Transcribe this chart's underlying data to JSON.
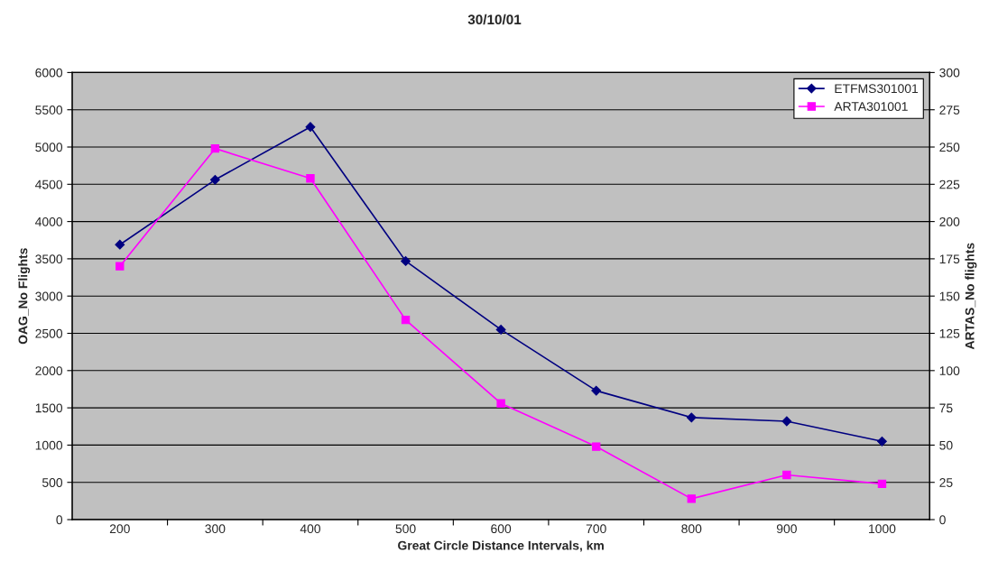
{
  "chart_data": {
    "type": "line",
    "title": "30/10/01",
    "xlabel": "Great Circle Distance Intervals, km",
    "ylabel": "OAG_No Flights",
    "y2label": "ARTAS_No flights",
    "categories": [
      "200",
      "300",
      "400",
      "500",
      "600",
      "700",
      "800",
      "900",
      "1000"
    ],
    "series": [
      {
        "name": "ETFMS301001",
        "color": "#000080",
        "marker": "diamond",
        "values": [
          3690,
          4560,
          5270,
          3470,
          2550,
          1730,
          1370,
          1320,
          1050
        ]
      },
      {
        "name": "ARTA301001",
        "color": "#ff00ff",
        "marker": "square",
        "axis": "y2",
        "values": [
          170,
          249,
          229,
          134,
          78,
          49,
          14,
          30,
          24
        ]
      }
    ],
    "ylim": [
      0,
      6000
    ],
    "yticks": [
      0,
      500,
      1000,
      1500,
      2000,
      2500,
      3000,
      3500,
      4000,
      4500,
      5000,
      5500,
      6000
    ],
    "y2lim": [
      0,
      300
    ],
    "y2ticks": [
      0,
      25,
      50,
      75,
      100,
      125,
      150,
      175,
      200,
      225,
      250,
      275,
      300
    ],
    "grid": "y",
    "legend": "top right"
  }
}
